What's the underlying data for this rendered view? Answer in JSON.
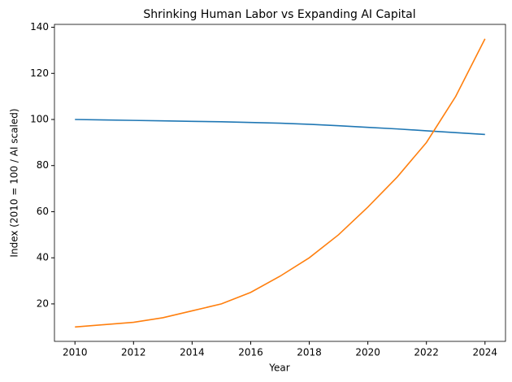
{
  "chart_data": {
    "type": "line",
    "title": "Shrinking Human Labor vs Expanding AI Capital",
    "x_label": "Year",
    "y_label": "Index (2010 = 100 / AI scaled)",
    "x": [
      2010,
      2011,
      2012,
      2013,
      2014,
      2015,
      2016,
      2017,
      2018,
      2019,
      2020,
      2021,
      2022,
      2023,
      2024
    ],
    "series": [
      {
        "color": "#1f77b4",
        "values": [
          100,
          99.8,
          99.6,
          99.4,
          99.2,
          99.0,
          98.7,
          98.4,
          97.9,
          97.3,
          96.6,
          95.9,
          95.1,
          94.3,
          93.5
        ]
      },
      {
        "color": "#ff7f0e",
        "values": [
          10,
          11,
          12,
          14,
          17,
          20,
          25,
          32,
          40,
          50,
          62,
          75,
          90,
          110,
          135
        ]
      }
    ],
    "xlim": [
      2009.3,
      2024.7
    ],
    "xticks": [
      2010,
      2012,
      2014,
      2016,
      2018,
      2020,
      2022,
      2024
    ],
    "ylim": [
      3.75,
      141.25
    ],
    "yticks": [
      20,
      40,
      60,
      80,
      100,
      120,
      140
    ],
    "grid": false
  }
}
